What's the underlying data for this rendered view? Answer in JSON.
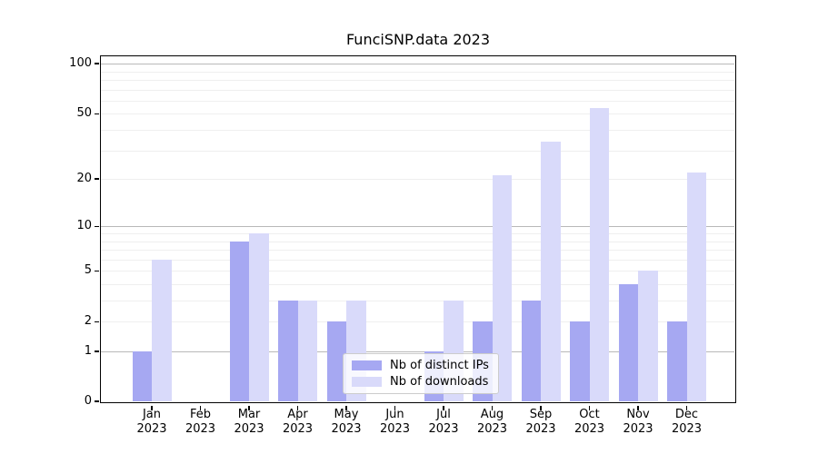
{
  "chart_data": {
    "type": "bar",
    "title": "FunciSNP.data 2023",
    "categories": [
      "Jan",
      "Feb",
      "Mar",
      "Apr",
      "May",
      "Jun",
      "Jul",
      "Aug",
      "Sep",
      "Oct",
      "Nov",
      "Dec"
    ],
    "category_year_line": "2023",
    "series": [
      {
        "name": "Nb of distinct IPs",
        "color": "#a6a8f2",
        "values": [
          1,
          0,
          8,
          3,
          2,
          0,
          1,
          2,
          3,
          2,
          4,
          2
        ]
      },
      {
        "name": "Nb of downloads",
        "color": "#d9dafa",
        "values": [
          6,
          0,
          9,
          3,
          3,
          0,
          3,
          21,
          34,
          54,
          5,
          22
        ]
      }
    ],
    "xlabel": "",
    "ylabel": "",
    "y_axis": {
      "scale": "log1p",
      "ticks": [
        0,
        1,
        2,
        5,
        10,
        20,
        50,
        100
      ],
      "ylim": [
        0,
        115
      ],
      "major_gridlines": [
        1,
        10,
        100
      ],
      "minor_gridlines": [
        2,
        3,
        4,
        5,
        6,
        7,
        8,
        9,
        20,
        30,
        40,
        50,
        60,
        70,
        80,
        90
      ]
    },
    "grid": "on",
    "legend_position": "lower-center"
  }
}
